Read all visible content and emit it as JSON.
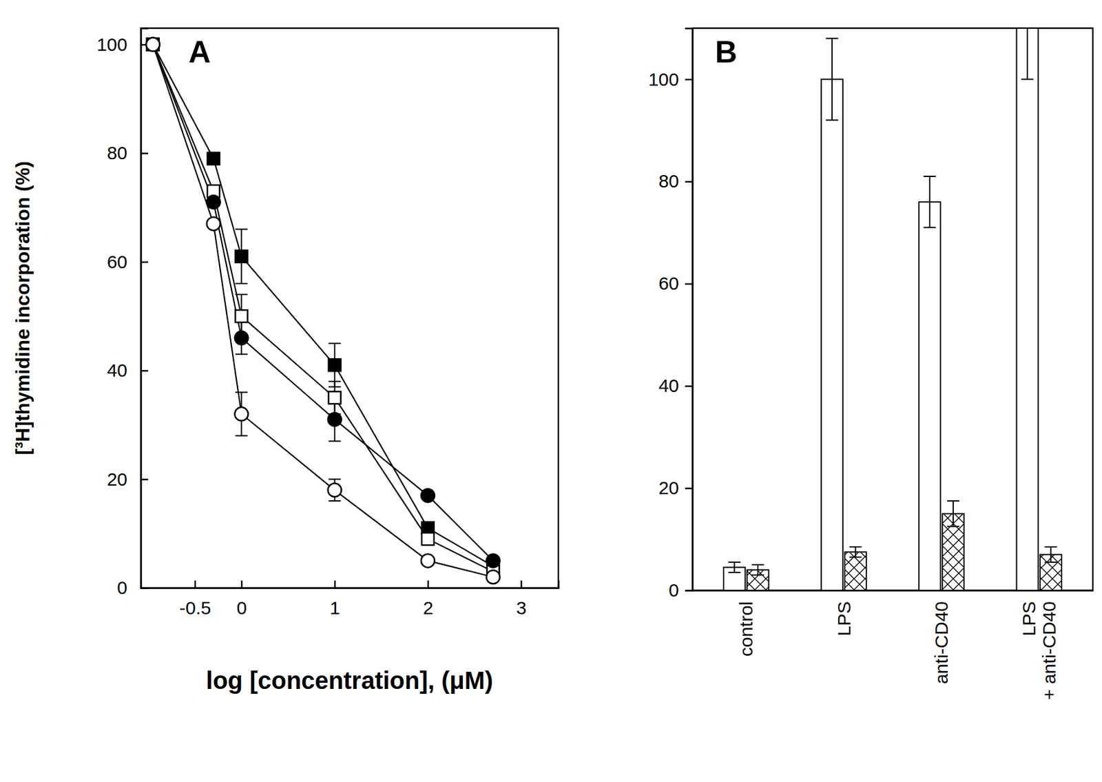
{
  "chart_data": [
    {
      "type": "line",
      "title": "A",
      "xlabel": "log [concentration], (μM)",
      "ylabel": "[³H]thymidine incorporation (%)",
      "x": [
        -0.95,
        -0.3,
        0,
        1,
        2,
        2.7
      ],
      "xlim": [
        -1.08,
        3.4
      ],
      "xticks": [
        -0.5,
        0,
        1,
        2,
        3
      ],
      "ylim": [
        0,
        103
      ],
      "yticks": [
        0,
        20,
        40,
        60,
        80,
        100
      ],
      "series": [
        {
          "marker": "square",
          "color": "#000000",
          "values": [
            100,
            79,
            61,
            41,
            11,
            4
          ],
          "errors": [
            null,
            null,
            5,
            4,
            null,
            null
          ]
        },
        {
          "marker": "square",
          "color": "#ffffff",
          "values": [
            100,
            73,
            50,
            35,
            9,
            3
          ],
          "errors": [
            null,
            null,
            4,
            3,
            null,
            null
          ]
        },
        {
          "marker": "circle",
          "color": "#000000",
          "values": [
            100,
            71,
            46,
            31,
            17,
            5
          ],
          "errors": [
            null,
            null,
            3,
            4,
            null,
            null
          ]
        },
        {
          "marker": "circle",
          "color": "#ffffff",
          "values": [
            100,
            67,
            32,
            18,
            5,
            2
          ],
          "errors": [
            null,
            null,
            4,
            2,
            null,
            null
          ]
        }
      ]
    },
    {
      "type": "bar",
      "title": "B",
      "categories": [
        "control",
        "LPS",
        "anti-CD40",
        "LPS\n+ anti-CD40"
      ],
      "ylim": [
        0,
        110
      ],
      "yticks": [
        0,
        20,
        40,
        60,
        80,
        100
      ],
      "series": [
        {
          "color": "#ffffff",
          "values": [
            4.5,
            100,
            76,
            110
          ],
          "errors": [
            1,
            8,
            5,
            10
          ]
        },
        {
          "color": "#ffffff",
          "values": [
            4,
            7.5,
            15,
            7
          ],
          "errors": [
            1,
            1,
            2.5,
            1.5
          ]
        }
      ]
    }
  ]
}
